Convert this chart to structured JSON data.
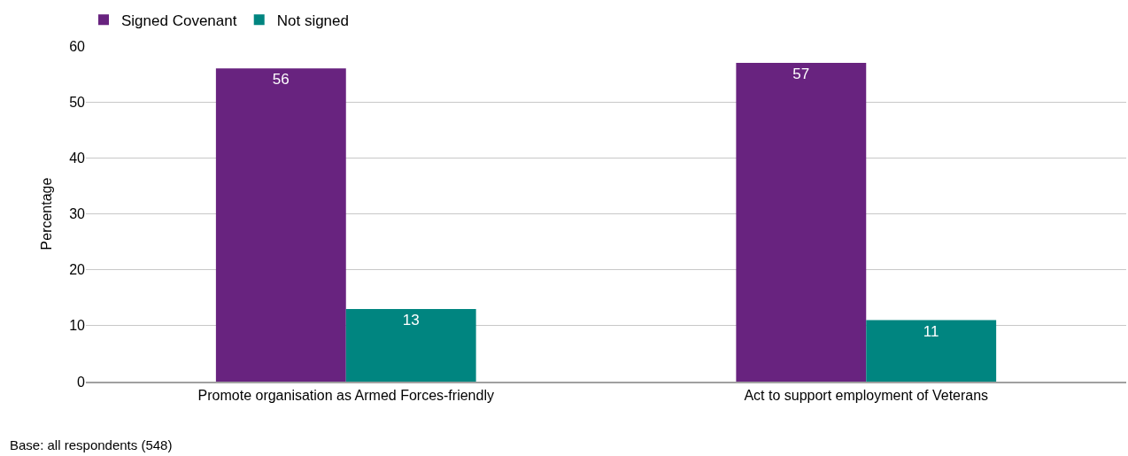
{
  "chart_data": {
    "type": "bar",
    "ylabel": "Percentage",
    "categories": [
      "Promote organisation as Armed Forces-friendly",
      "Act to support employment of Veterans"
    ],
    "series": [
      {
        "name": "Signed Covenant",
        "color": "#68237f",
        "values": [
          56,
          57
        ]
      },
      {
        "name": "Not signed",
        "color": "#008580",
        "values": [
          13,
          11
        ]
      }
    ],
    "ylim": [
      0,
      60
    ],
    "yticks": [
      0,
      10,
      20,
      30,
      40,
      50,
      60
    ],
    "grid": "y",
    "legend": "top left",
    "data_labels": true,
    "annotations": [
      "Base: all respondents (548)"
    ]
  }
}
